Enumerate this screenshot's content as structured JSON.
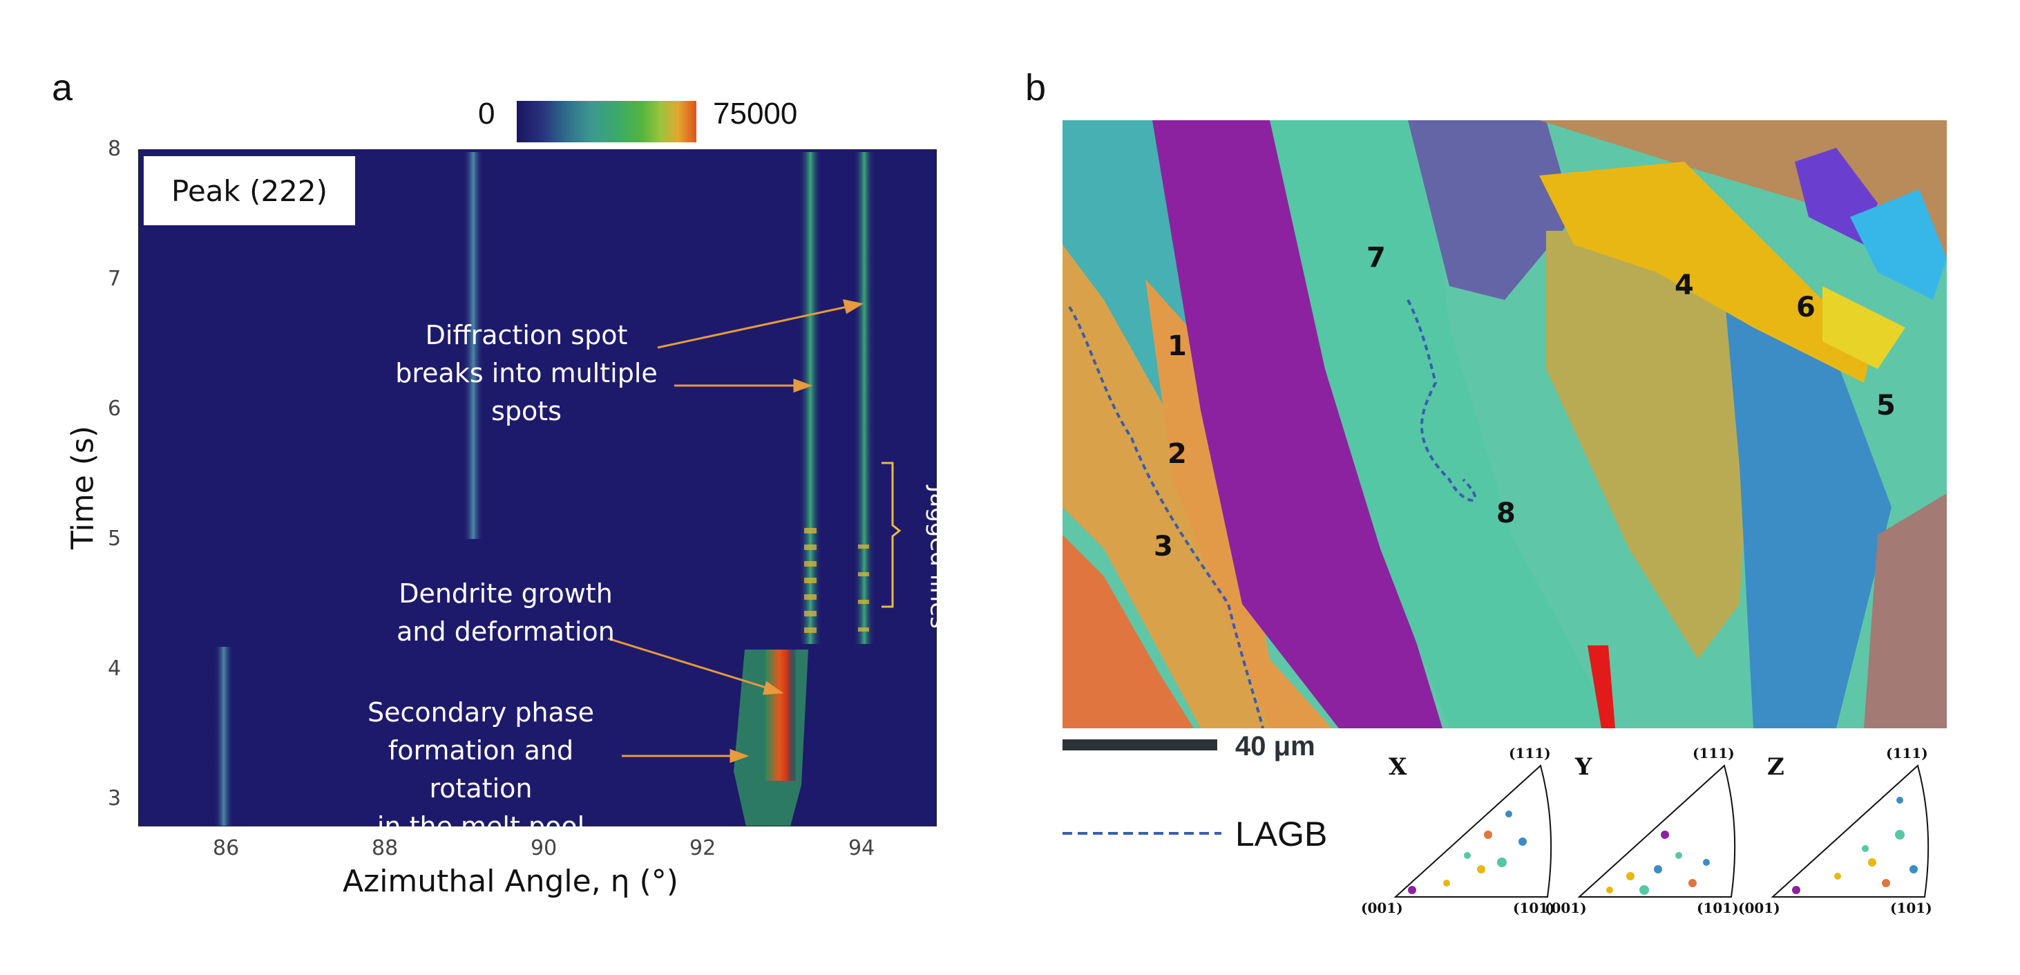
{
  "panel_a": {
    "letter": "a",
    "colorbar": {
      "min_label": "0",
      "max_label": "75000"
    },
    "peak_label": "Peak (222)",
    "ylabel": "Time (s)",
    "xlabel": "Azimuthal Angle, η (°)",
    "annotations": {
      "diffraction": [
        "Diffraction spot",
        "breaks into multiple",
        "spots"
      ],
      "dendrite": [
        "Dendrite growth",
        "and deformation"
      ],
      "secondary": [
        "Secondary phase",
        "formation and rotation",
        "in the melt pool"
      ],
      "jagged": "Jagged lines"
    },
    "colors": {
      "background": "#1e1a6b",
      "streak": "#3aa87a",
      "hot": "#e2581c"
    }
  },
  "chart_data": {
    "type": "heatmap",
    "title": "Peak (222)",
    "xlabel": "Azimuthal Angle, η (°)",
    "ylabel": "Time (s)",
    "xlim": [
      85,
      95
    ],
    "ylim": [
      2.8,
      8.0
    ],
    "x_ticks": [
      "86",
      "88",
      "90",
      "92",
      "94"
    ],
    "y_ticks": [
      "3",
      "4",
      "5",
      "6",
      "7",
      "8"
    ],
    "colorbar_range": [
      0,
      75000
    ],
    "streaks": [
      {
        "eta": 86.3,
        "t_start": 2.8,
        "t_end": 4.2
      },
      {
        "eta": 89.3,
        "t_start": 5.0,
        "t_end": 8.0
      },
      {
        "eta": 93.4,
        "t_start": 4.2,
        "t_end": 8.0
      },
      {
        "eta": 94.2,
        "t_start": 4.2,
        "t_end": 8.0
      },
      {
        "eta": 93.0,
        "t_start": 2.8,
        "t_end": 4.2
      }
    ]
  },
  "panel_b": {
    "letter": "b",
    "grain_labels": [
      "1",
      "2",
      "3",
      "4",
      "5",
      "6",
      "7",
      "8"
    ],
    "scale_bar": "40 μm",
    "legend_lagb": "LAGB",
    "ipf": [
      {
        "axis": "X",
        "top": "(111)",
        "left": "(001)",
        "right": "(101)"
      },
      {
        "axis": "Y",
        "top": "(111)",
        "left": "(001)",
        "right": "(101)"
      },
      {
        "axis": "Z",
        "top": "(111)",
        "left": "(001)",
        "right": "(101)"
      }
    ],
    "lagb_color": "#3b5db0"
  }
}
